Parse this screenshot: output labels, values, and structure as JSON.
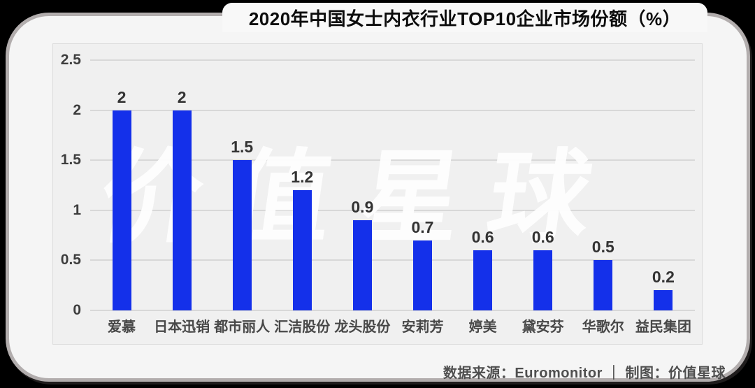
{
  "header": {
    "title": "2020年中国女士内衣行业TOP10企业市场份额（%）"
  },
  "watermark": {
    "text": "价值星球"
  },
  "footer": {
    "source": "数据来源：Euromonitor ｜ 制图：价值星球"
  },
  "colors": {
    "bar": "#1430ea",
    "grid": "#d8d8d8",
    "watermark": "#ffffff",
    "card_border": "#b2adad",
    "page_background": "#000000"
  },
  "chart_data": {
    "type": "bar",
    "title": "2020年中国女士内衣行业TOP10企业市场份额（%）",
    "categories": [
      "爱慕",
      "日本迅销",
      "都市丽人",
      "汇洁股份",
      "龙头股份",
      "安莉芳",
      "婷美",
      "黛安芬",
      "华歌尔",
      "益民集团"
    ],
    "values": [
      2,
      2,
      1.5,
      1.2,
      0.9,
      0.7,
      0.6,
      0.6,
      0.5,
      0.2
    ],
    "value_labels": [
      "2",
      "2",
      "1.5",
      "1.2",
      "0.9",
      "0.7",
      "0.6",
      "0.6",
      "0.5",
      "0.2"
    ],
    "yticks": [
      0,
      0.5,
      1,
      1.5,
      2,
      2.5
    ],
    "ylim": [
      0,
      2.5
    ],
    "xlabel": "",
    "ylabel": "",
    "grid": true,
    "legend": false
  }
}
